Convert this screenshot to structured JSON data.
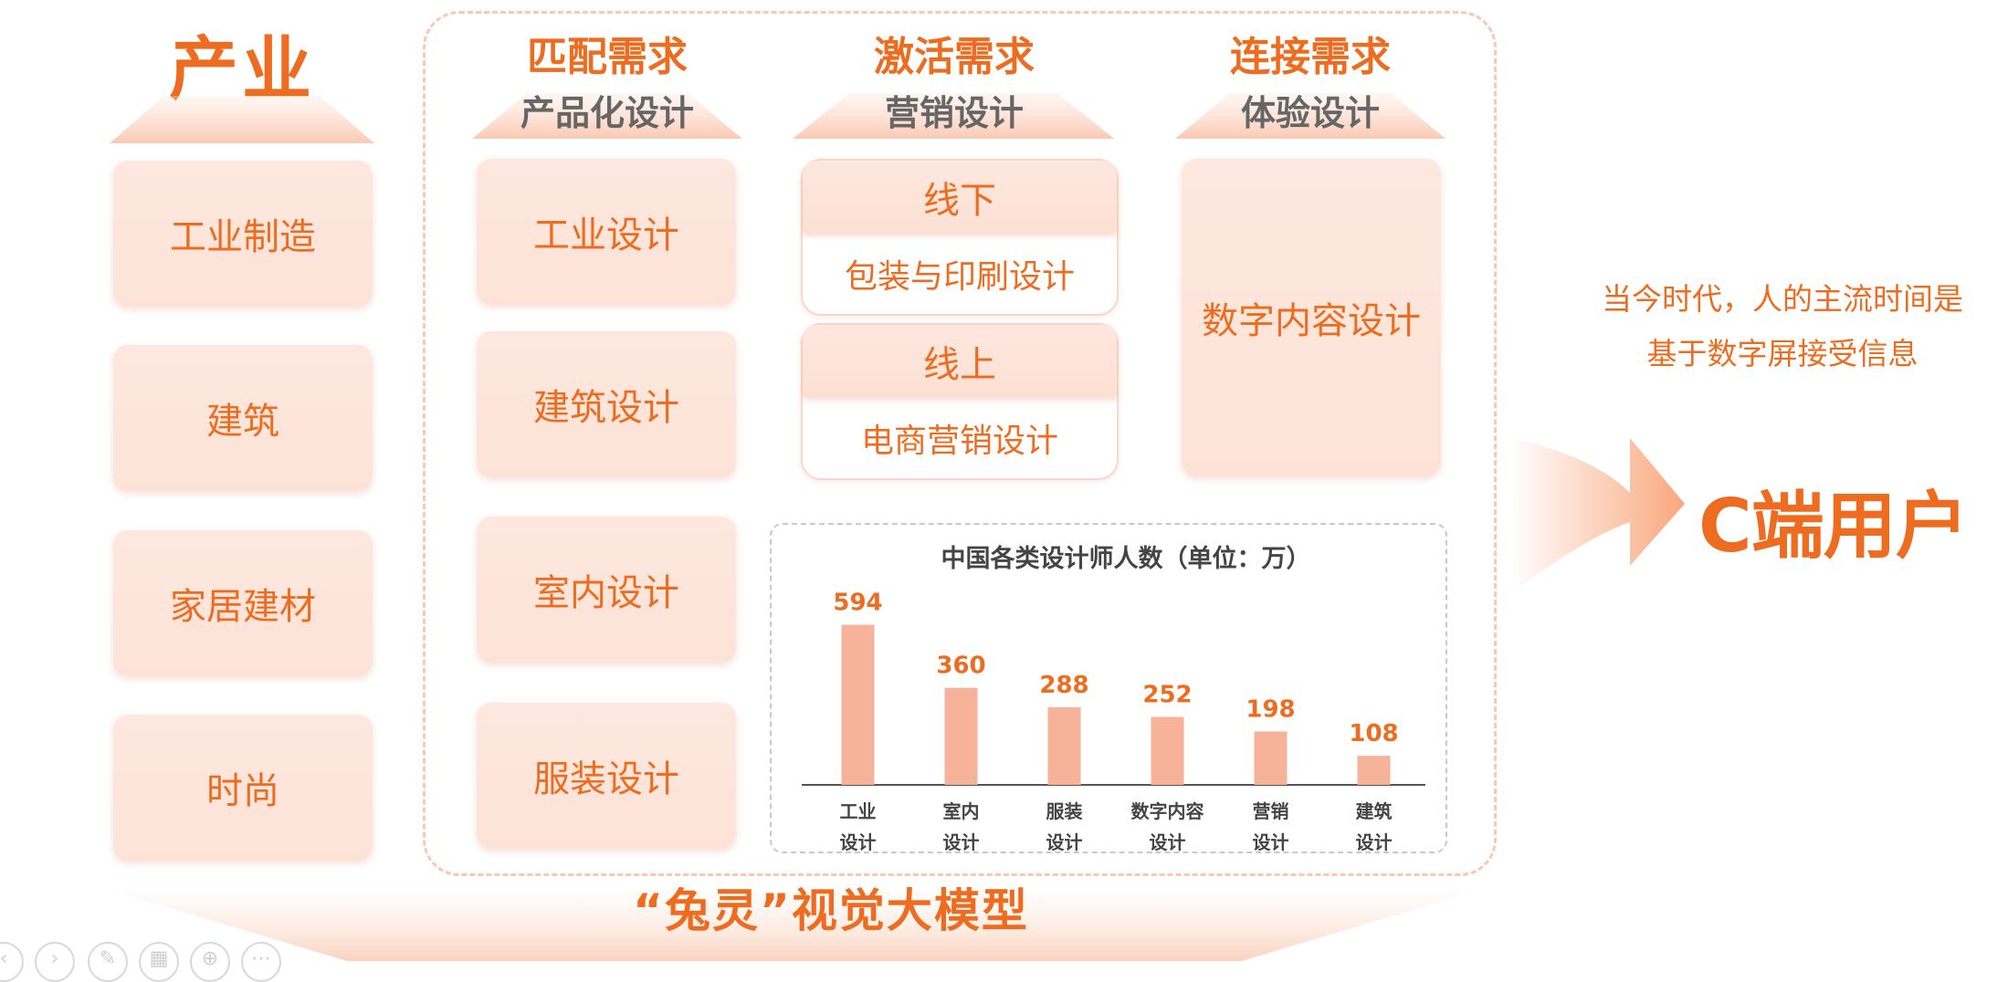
{
  "industry": {
    "title": "产业",
    "items": [
      "工业制造",
      "建筑",
      "家居建材",
      "时尚"
    ]
  },
  "columns": [
    {
      "main": "匹配需求",
      "sub": "产品化设计"
    },
    {
      "main": "激活需求",
      "sub": "营销设计"
    },
    {
      "main": "连接需求",
      "sub": "体验设计"
    }
  ],
  "product_design": [
    "工业设计",
    "建筑设计",
    "室内设计",
    "服装设计"
  ],
  "marketing": [
    {
      "top": "线下",
      "bottom": "包装与印刷设计"
    },
    {
      "top": "线上",
      "bottom": "电商营销设计"
    }
  ],
  "experience": "数字内容设计",
  "model_name": "“兔灵”视觉大模型",
  "note_lines": [
    "当今时代，人的主流时间是",
    "基于数字屏接受信息"
  ],
  "target": "C端用户",
  "colors": {
    "accent": "#ee6c1f",
    "card": "#fde4d9",
    "bar": "#f7b39a"
  },
  "chart_data": {
    "type": "bar",
    "title": "中国各类设计师人数（单位：万）",
    "categories": [
      [
        "工业",
        "设计"
      ],
      [
        "室内",
        "设计"
      ],
      [
        "服装",
        "设计"
      ],
      [
        "数字内容",
        "设计"
      ],
      [
        "营销",
        "设计"
      ],
      [
        "建筑",
        "设计"
      ]
    ],
    "values": [
      594,
      360,
      288,
      252,
      198,
      108
    ],
    "ylim": [
      0,
      650
    ],
    "grid": false,
    "legend": "none"
  },
  "toolbar_icons": [
    "prev-icon",
    "next-icon",
    "pen-icon",
    "slides-icon",
    "zoom-icon",
    "more-icon"
  ]
}
